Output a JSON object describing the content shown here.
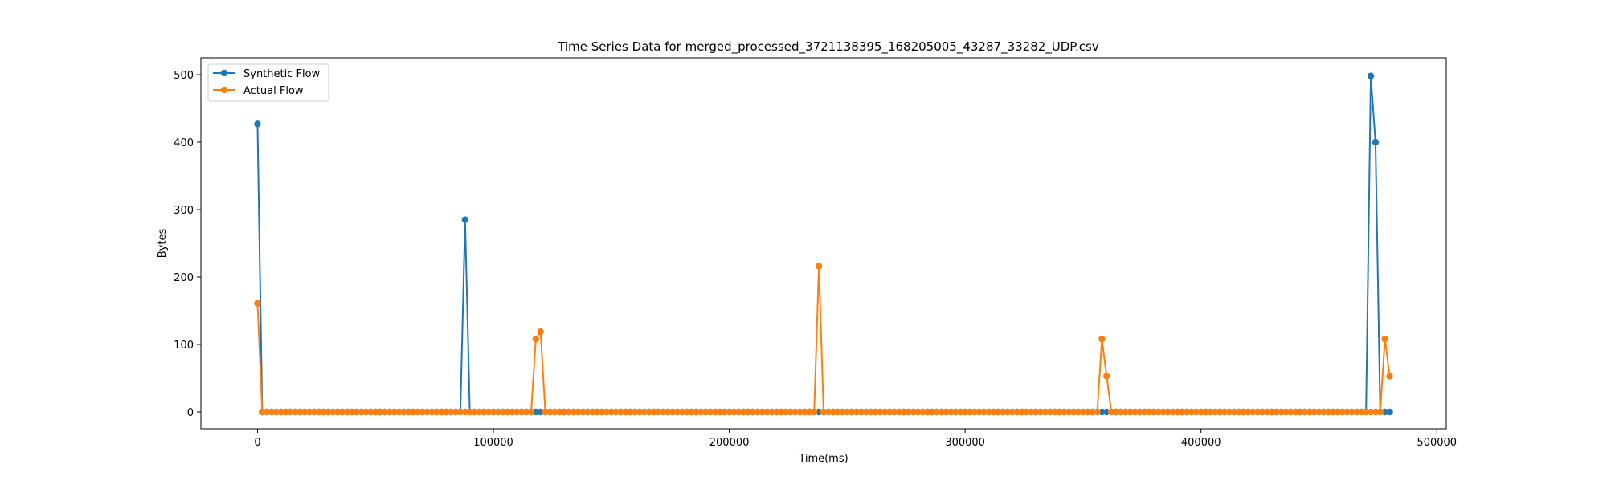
{
  "chart_data": {
    "type": "line",
    "title": "Time Series Data for merged_processed_3721138395_168205005_43287_33282_UDP.csv",
    "xlabel": "Time(ms)",
    "ylabel": "Bytes",
    "xlim": [
      -24000,
      504000
    ],
    "ylim": [
      -25,
      525
    ],
    "xticks": [
      0,
      100000,
      200000,
      300000,
      400000,
      500000
    ],
    "yticks": [
      0,
      100,
      200,
      300,
      400,
      500
    ],
    "grid": false,
    "legend_position": "top-left",
    "series": [
      {
        "name": "Synthetic Flow",
        "color": "#1f77b4",
        "marker": "circle",
        "spikes": [
          [
            0,
            427
          ],
          [
            88000,
            285
          ],
          [
            472000,
            498
          ],
          [
            474000,
            400
          ]
        ]
      },
      {
        "name": "Actual Flow",
        "color": "#ff7f0e",
        "marker": "circle",
        "spikes": [
          [
            0,
            161
          ],
          [
            118000,
            108
          ],
          [
            120000,
            119
          ],
          [
            238000,
            216
          ],
          [
            358000,
            108
          ],
          [
            360000,
            53
          ],
          [
            478000,
            108
          ],
          [
            480000,
            53
          ]
        ]
      }
    ]
  }
}
